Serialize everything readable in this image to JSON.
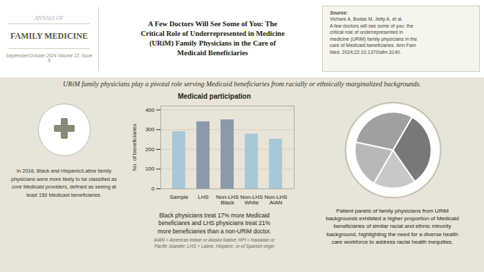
{
  "title": "A Few Doctors Will See Some of You: The\nCritical Role of Underrepresented in Medicine\n(URiM) Family Physicians in the Care of\nMedicaid Beneficiaries",
  "subtitle": "URiM family physicians play a pivotal role serving Medicaid beneficiaries from racially or ethnically marginalized backgrounds.",
  "annotations": [
    "ANNALS OF",
    "FAMILY MEDICINE",
    "September/October 2024 Volume 22, Issue 5",
    "Source:",
    "Vichare A, Bodas M, Jetty A, et al.\nA few doctors will see some of you: the\ncritical role of underrepresented in\nmedicine (URiM) family physicians in the\ncare of Medicaid beneficiaries.  Ann Fam\nMed. 2024;22:10.1370/afm.3140.",
    "In 2016, Black and Hispanic/Latine family\nphysicians were more likely to be classified as\ncore Medicaid providers, defined as seeing at\nleast 150 Medicaid beneficiaries.",
    "Black physicians treat 17% more Medicaid\nbeneficiares and LHS physicians treat 21%\nmore beneficiaries than a non-URiM doctor.",
    "AIAN = American Indian or Alaska Native; HPI = Hawaiian or\nPacific Islander; LHS = Latine, Hispanic, or of Spanish origin",
    "Patient panels of family physicians from URiM\nbackgrounds exhibited a higher proportion of Medicaid\nbeneficiaries of similar racial and ethnic minority\nbackground, highlighting the need for a diverse health\ncare workforce to address racial health inequities."
  ],
  "chart_data": [
    {
      "type": "bar",
      "title": "Medicaid participation",
      "categories": [
        "Sample",
        "LHS",
        "Non-LHS\nBlack",
        "Non-LHS\nWhite",
        "Non-LHS\nAIAN"
      ],
      "values": [
        290,
        340,
        350,
        278,
        252
      ],
      "colors": [
        "#a8c8d8",
        "#8a9aaa",
        "#8a9aaa",
        "#a8c8d8",
        "#a8c8d8"
      ],
      "ylabel": "No. of beneficiaries",
      "ylim": [
        0,
        420
      ],
      "yticks": [
        0,
        100,
        200,
        300,
        400
      ],
      "grid": true
    },
    {
      "type": "pie",
      "values": [
        30,
        20,
        18,
        32
      ],
      "colors": [
        "#a0a0a0",
        "#b8b8b8",
        "#c8c8c8",
        "#787878"
      ]
    }
  ]
}
